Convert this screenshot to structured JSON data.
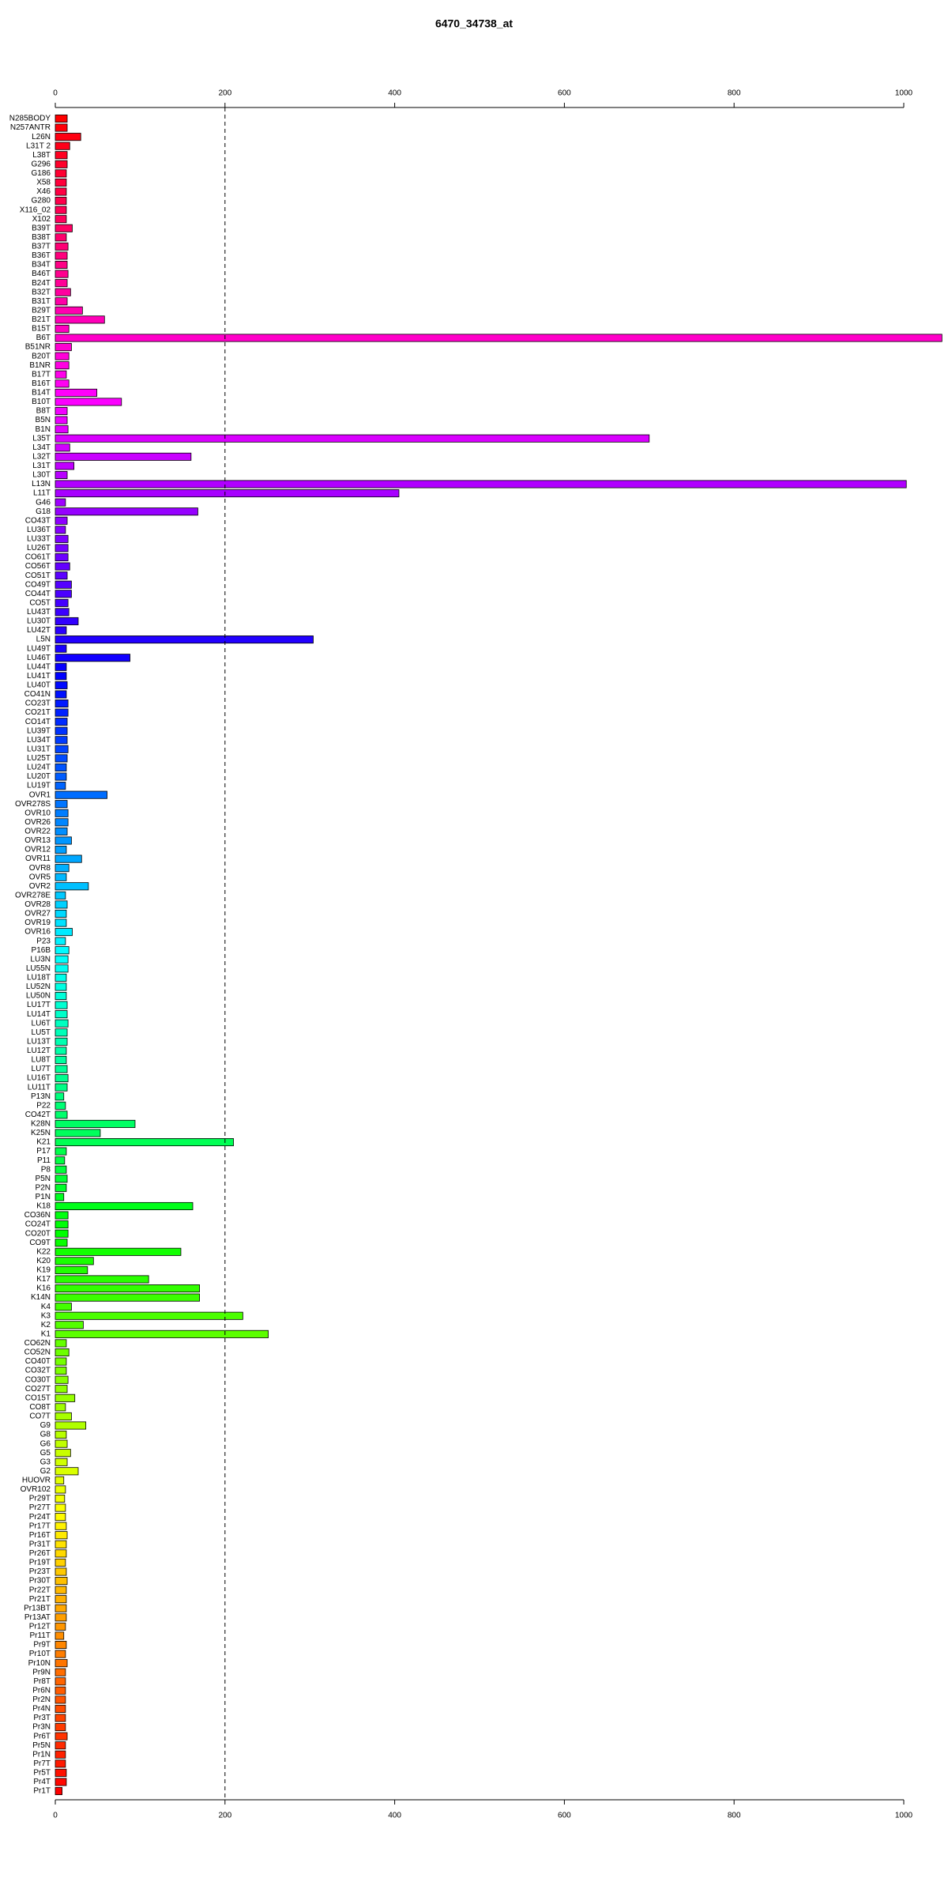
{
  "chart_data": {
    "type": "barh",
    "title": "6470_34738_at",
    "palette": "rainbow",
    "categories": [
      "N285BODY",
      "N257ANTR",
      "L26N",
      "L31T 2",
      "L38T",
      "G296",
      "G186",
      "X58",
      "X46",
      "G280",
      "X116_02",
      "X102",
      "B39T",
      "B38T",
      "B37T",
      "B36T",
      "B34T",
      "B46T",
      "B24T",
      "B32T",
      "B31T",
      "B29T",
      "B21T",
      "B15T",
      "B6T",
      "B51NR",
      "B20T",
      "B1NR",
      "B17T",
      "B16T",
      "B14T",
      "B10T",
      "B8T",
      "B5N",
      "B1N",
      "L35T",
      "L34T",
      "L32T",
      "L31T",
      "L30T",
      "L13N",
      "L11T",
      "G46",
      "G18",
      "CO43T",
      "LU36T",
      "LU33T",
      "LU26T",
      "CO61T",
      "CO56T",
      "CO51T",
      "CO49T",
      "CO44T",
      "CO5T",
      "LU43T",
      "LU30T",
      "LU42T",
      "L5N",
      "LU49T",
      "LU46T",
      "LU44T",
      "LU41T",
      "LU40T",
      "CO41N",
      "CO23T",
      "CO21T",
      "CO14T",
      "LU39T",
      "LU34T",
      "LU31T",
      "LU25T",
      "LU24T",
      "LU20T",
      "LU19T",
      "OVR1",
      "OVR278S",
      "OVR10",
      "OVR26",
      "OVR22",
      "OVR13",
      "OVR12",
      "OVR11",
      "OVR8",
      "OVR5",
      "OVR2",
      "OVR278E",
      "OVR28",
      "OVR27",
      "OVR19",
      "OVR16",
      "P23",
      "P16B",
      "LU3N",
      "LU55N",
      "LU18T",
      "LU52N",
      "LU50N",
      "LU17T",
      "LU14T",
      "LU6T",
      "LU5T",
      "LU13T",
      "LU12T",
      "LU8T",
      "LU7T",
      "LU16T",
      "LU11T",
      "P13N",
      "P22",
      "CO42T",
      "K28N",
      "K25N",
      "K21",
      "P17",
      "P11",
      "P8",
      "P5N",
      "P2N",
      "P1N",
      "K18",
      "CO36N",
      "CO24T",
      "CO20T",
      "CO9T",
      "K22",
      "K20",
      "K19",
      "K17",
      "K16",
      "K14N",
      "K4",
      "K3",
      "K2",
      "K1",
      "CO62N",
      "CO52N",
      "CO40T",
      "CO32T",
      "CO30T",
      "CO27T",
      "CO15T",
      "CO8T",
      "CO7T",
      "G9",
      "G8",
      "G6",
      "G5",
      "G3",
      "G2",
      "HUOVR",
      "OVR102",
      "Pr29T",
      "Pr27T",
      "Pr24T",
      "Pr17T",
      "Pr16T",
      "Pr31T",
      "Pr26T",
      "Pr19T",
      "Pr23T",
      "Pr30T",
      "Pr22T",
      "Pr21T",
      "Pr13BT",
      "Pr13AT",
      "Pr12T",
      "Pr11T",
      "Pr9T",
      "Pr10T",
      "Pr10N",
      "Pr9N",
      "Pr8T",
      "Pr6N",
      "Pr2N",
      "Pr4N",
      "Pr3T",
      "Pr3N",
      "Pr6T",
      "Pr5N",
      "Pr1N",
      "Pr7T",
      "Pr5T",
      "Pr4T",
      "Pr1T"
    ],
    "values": [
      14,
      14,
      30,
      17,
      14,
      14,
      13,
      13,
      13,
      13,
      13,
      13,
      20,
      13,
      15,
      14,
      14,
      15,
      14,
      18,
      14,
      32,
      58,
      16,
      1045,
      19,
      16,
      16,
      13,
      16,
      49,
      78,
      14,
      14,
      15,
      700,
      17,
      160,
      22,
      14,
      1003,
      405,
      12,
      168,
      14,
      12,
      15,
      15,
      15,
      17,
      14,
      19,
      19,
      15,
      16,
      27,
      13,
      304,
      13,
      88,
      13,
      13,
      14,
      13,
      15,
      15,
      14,
      14,
      14,
      15,
      14,
      13,
      13,
      12,
      61,
      14,
      15,
      15,
      14,
      19,
      13,
      31,
      16,
      13,
      39,
      12,
      14,
      13,
      13,
      20,
      12,
      16,
      15,
      15,
      13,
      13,
      13,
      14,
      14,
      15,
      14,
      14,
      13,
      13,
      14,
      15,
      14,
      10,
      12,
      14,
      94,
      53,
      210,
      13,
      11,
      13,
      14,
      13,
      10,
      162,
      15,
      15,
      15,
      14,
      148,
      45,
      38,
      110,
      170,
      170,
      19,
      221,
      33,
      251,
      13,
      16,
      13,
      13,
      15,
      14,
      23,
      12,
      19,
      36,
      13,
      14,
      18,
      14,
      27,
      10,
      12,
      11,
      12,
      12,
      13,
      14,
      13,
      13,
      12,
      13,
      14,
      13,
      13,
      13,
      13,
      12,
      10,
      13,
      12,
      14,
      12,
      12,
      12,
      12,
      12,
      12,
      12,
      14,
      12,
      12,
      12,
      13,
      13,
      8
    ],
    "xlim": [
      0,
      1000
    ],
    "xticks": [
      0,
      200,
      400,
      600,
      800,
      1000
    ],
    "vline": 200
  }
}
